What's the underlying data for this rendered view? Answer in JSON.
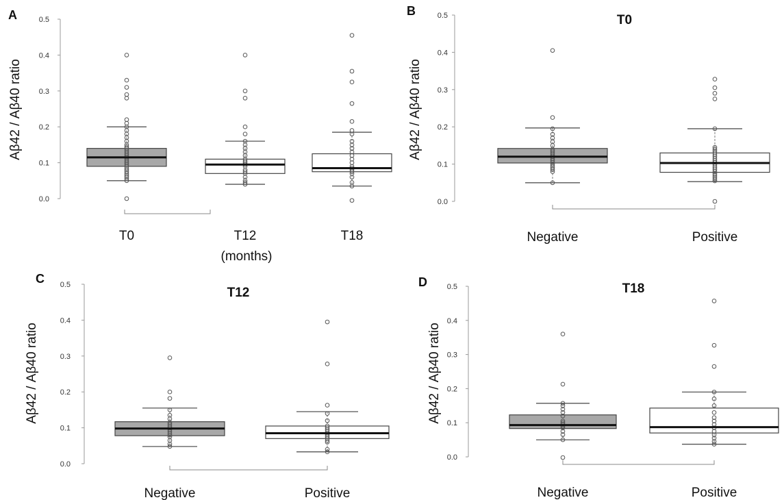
{
  "chart_data": [
    {
      "panel": "A",
      "type": "box",
      "title": "",
      "ylabel": "Aβ42 / Aβ40 ratio",
      "xlabel": "(months)",
      "ylim": [
        0,
        0.5
      ],
      "yticks": [
        "0.0",
        "0.1",
        "0.2",
        "0.3",
        "0.4",
        "0.5"
      ],
      "categories": [
        "T0",
        "T12",
        "T18"
      ],
      "boxes": [
        {
          "category": "T0",
          "fill": "#a8a8a8",
          "lower_whisker": 0.05,
          "q1": 0.09,
          "median": 0.115,
          "q3": 0.14,
          "upper_whisker": 0.2,
          "points": [
            0.0,
            0.05,
            0.055,
            0.06,
            0.065,
            0.07,
            0.075,
            0.08,
            0.085,
            0.09,
            0.095,
            0.1,
            0.105,
            0.11,
            0.115,
            0.12,
            0.125,
            0.13,
            0.135,
            0.14,
            0.145,
            0.15,
            0.16,
            0.17,
            0.18,
            0.19,
            0.2,
            0.21,
            0.22,
            0.28,
            0.29,
            0.31,
            0.33,
            0.4
          ]
        },
        {
          "category": "T12",
          "fill": "#ffffff",
          "lower_whisker": 0.04,
          "q1": 0.07,
          "median": 0.095,
          "q3": 0.11,
          "upper_whisker": 0.16,
          "points": [
            0.04,
            0.045,
            0.05,
            0.06,
            0.07,
            0.075,
            0.08,
            0.09,
            0.095,
            0.1,
            0.105,
            0.11,
            0.12,
            0.13,
            0.14,
            0.15,
            0.16,
            0.18,
            0.2,
            0.28,
            0.3,
            0.4
          ]
        },
        {
          "category": "T18",
          "fill": "#ffffff",
          "lower_whisker": 0.035,
          "q1": 0.075,
          "median": 0.085,
          "q3": 0.125,
          "upper_whisker": 0.185,
          "points": [
            -0.005,
            0.035,
            0.045,
            0.06,
            0.07,
            0.075,
            0.08,
            0.085,
            0.09,
            0.1,
            0.11,
            0.12,
            0.13,
            0.14,
            0.15,
            0.16,
            0.18,
            0.19,
            0.215,
            0.265,
            0.325,
            0.355,
            0.455
          ]
        }
      ]
    },
    {
      "panel": "B",
      "type": "box",
      "title": "T0",
      "ylabel": "Aβ42 / Aβ40 ratio",
      "xlabel": "",
      "ylim": [
        0,
        0.5
      ],
      "yticks": [
        "0.0",
        "0.1",
        "0.2",
        "0.3",
        "0.4",
        "0.5"
      ],
      "categories": [
        "Negative",
        "Positive"
      ],
      "boxes": [
        {
          "category": "Negative",
          "fill": "#a8a8a8",
          "lower_whisker": 0.05,
          "q1": 0.103,
          "median": 0.12,
          "q3": 0.142,
          "upper_whisker": 0.197,
          "points": [
            0.05,
            0.08,
            0.085,
            0.09,
            0.095,
            0.1,
            0.105,
            0.11,
            0.115,
            0.12,
            0.125,
            0.13,
            0.135,
            0.14,
            0.15,
            0.16,
            0.17,
            0.18,
            0.195,
            0.225,
            0.405
          ]
        },
        {
          "category": "Positive",
          "fill": "#ffffff",
          "lower_whisker": 0.053,
          "q1": 0.078,
          "median": 0.103,
          "q3": 0.13,
          "upper_whisker": 0.195,
          "points": [
            0.0,
            0.055,
            0.06,
            0.065,
            0.07,
            0.075,
            0.08,
            0.085,
            0.09,
            0.095,
            0.1,
            0.105,
            0.11,
            0.115,
            0.12,
            0.125,
            0.13,
            0.135,
            0.14,
            0.145,
            0.195,
            0.275,
            0.29,
            0.305,
            0.328
          ]
        }
      ]
    },
    {
      "panel": "C",
      "type": "box",
      "title": "T12",
      "ylabel": "Aβ42 / Aβ40 ratio",
      "xlabel": "",
      "ylim": [
        0,
        0.5
      ],
      "yticks": [
        "0.0",
        "0.1",
        "0.2",
        "0.3",
        "0.4",
        "0.5"
      ],
      "categories": [
        "Negative",
        "Positive"
      ],
      "boxes": [
        {
          "category": "Negative",
          "fill": "#a8a8a8",
          "lower_whisker": 0.048,
          "q1": 0.078,
          "median": 0.098,
          "q3": 0.117,
          "upper_whisker": 0.155,
          "points": [
            0.048,
            0.055,
            0.065,
            0.075,
            0.08,
            0.085,
            0.09,
            0.095,
            0.1,
            0.105,
            0.11,
            0.115,
            0.125,
            0.135,
            0.15,
            0.182,
            0.2,
            0.295
          ]
        },
        {
          "category": "Positive",
          "fill": "#ffffff",
          "lower_whisker": 0.033,
          "q1": 0.07,
          "median": 0.085,
          "q3": 0.105,
          "upper_whisker": 0.145,
          "points": [
            0.033,
            0.04,
            0.06,
            0.065,
            0.07,
            0.075,
            0.08,
            0.085,
            0.09,
            0.095,
            0.1,
            0.105,
            0.12,
            0.14,
            0.163,
            0.278,
            0.395
          ]
        }
      ]
    },
    {
      "panel": "D",
      "type": "box",
      "title": "T18",
      "ylabel": "Aβ42 / Aβ40 ratio",
      "xlabel": "",
      "ylim": [
        0,
        0.5
      ],
      "yticks": [
        "0.0",
        "0.1",
        "0.2",
        "0.3",
        "0.4",
        "0.5"
      ],
      "categories": [
        "Negative",
        "Positive"
      ],
      "boxes": [
        {
          "category": "Negative",
          "fill": "#a8a8a8",
          "lower_whisker": 0.05,
          "q1": 0.083,
          "median": 0.093,
          "q3": 0.123,
          "upper_whisker": 0.157,
          "points": [
            -0.002,
            0.05,
            0.065,
            0.075,
            0.085,
            0.09,
            0.095,
            0.1,
            0.105,
            0.12,
            0.13,
            0.14,
            0.15,
            0.157,
            0.213,
            0.36
          ]
        },
        {
          "category": "Positive",
          "fill": "#ffffff",
          "lower_whisker": 0.037,
          "q1": 0.07,
          "median": 0.087,
          "q3": 0.143,
          "upper_whisker": 0.19,
          "points": [
            0.037,
            0.045,
            0.055,
            0.065,
            0.075,
            0.085,
            0.095,
            0.105,
            0.115,
            0.13,
            0.15,
            0.17,
            0.19,
            0.265,
            0.327,
            0.457
          ]
        }
      ]
    }
  ]
}
